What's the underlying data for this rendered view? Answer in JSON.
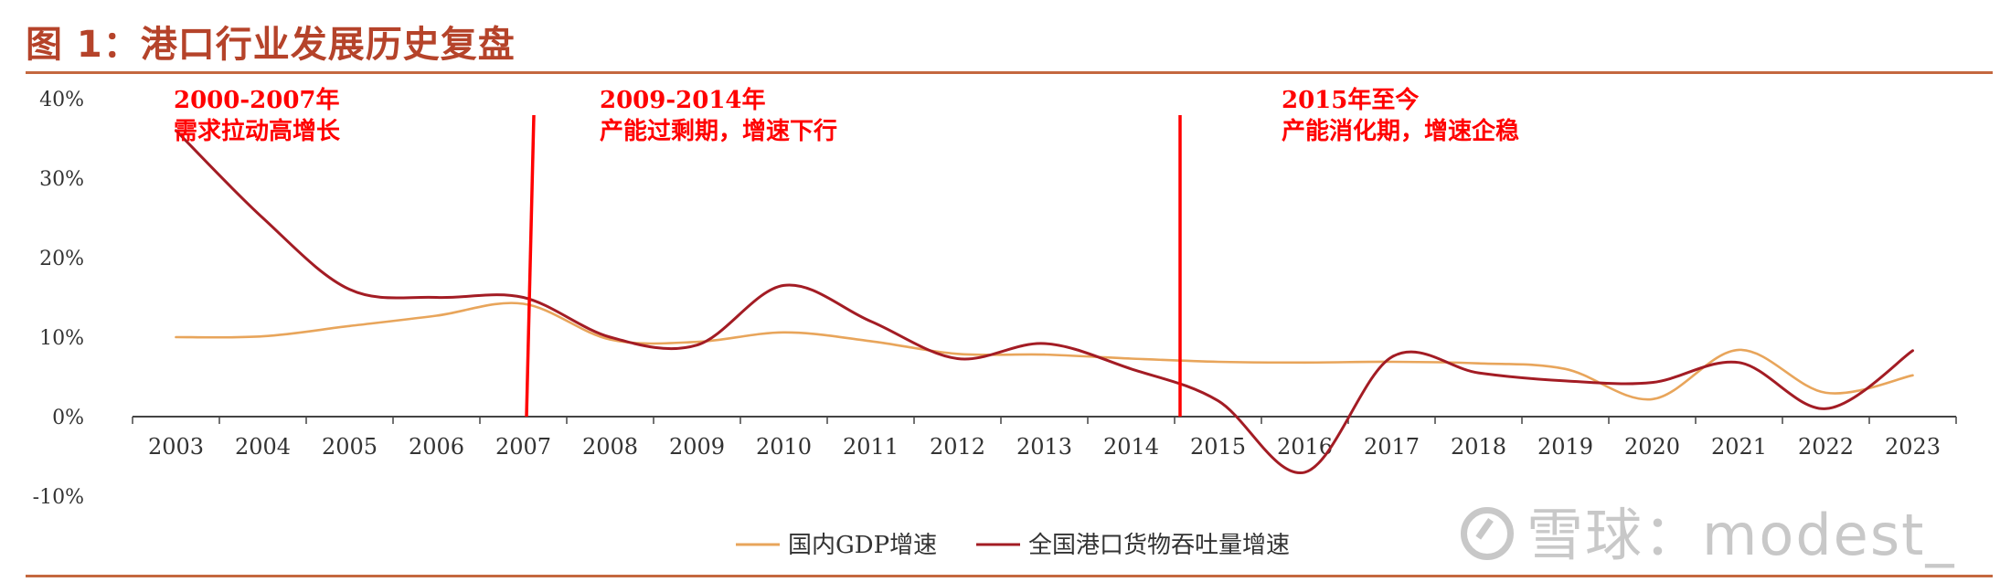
{
  "title": "图 1：港口行业发展历史复盘",
  "watermark": "雪球：modest_",
  "colors": {
    "gdp": "#e8a55b",
    "port": "#a31c24",
    "divider": "#ff0000",
    "rule": "#c4683f"
  },
  "chart_data": {
    "type": "line",
    "title": "图 1：港口行业发展历史复盘",
    "xlabel": "",
    "ylabel": "",
    "ylim": [
      -0.1,
      0.4
    ],
    "yticks": [
      "40%",
      "30%",
      "20%",
      "10%",
      "0%",
      "-10%"
    ],
    "categories": [
      "2003",
      "2004",
      "2005",
      "2006",
      "2007",
      "2008",
      "2009",
      "2010",
      "2011",
      "2012",
      "2013",
      "2014",
      "2015",
      "2016",
      "2017",
      "2018",
      "2019",
      "2020",
      "2021",
      "2022",
      "2023"
    ],
    "series": [
      {
        "name": "国内GDP增速",
        "values": [
          0.1,
          0.101,
          0.114,
          0.127,
          0.142,
          0.097,
          0.094,
          0.106,
          0.095,
          0.079,
          0.078,
          0.073,
          0.069,
          0.068,
          0.069,
          0.067,
          0.06,
          0.022,
          0.084,
          0.03,
          0.052
        ]
      },
      {
        "name": "全国港口货物吞吐量增速",
        "values": [
          0.36,
          0.25,
          0.16,
          0.15,
          0.15,
          0.1,
          0.09,
          0.165,
          0.12,
          0.073,
          0.092,
          0.06,
          0.02,
          -0.07,
          0.075,
          0.055,
          0.045,
          0.043,
          0.068,
          0.01,
          0.083
        ]
      }
    ],
    "grid": false,
    "legend": "bottom-center",
    "annotations": [
      {
        "line1": "2000-2007年",
        "line2": "需求拉动高增长"
      },
      {
        "line1": "2009-2014年",
        "line2": "产能过剩期，增速下行"
      },
      {
        "line1": "2015年至今",
        "line2": "产能消化期，增速企稳"
      }
    ]
  }
}
